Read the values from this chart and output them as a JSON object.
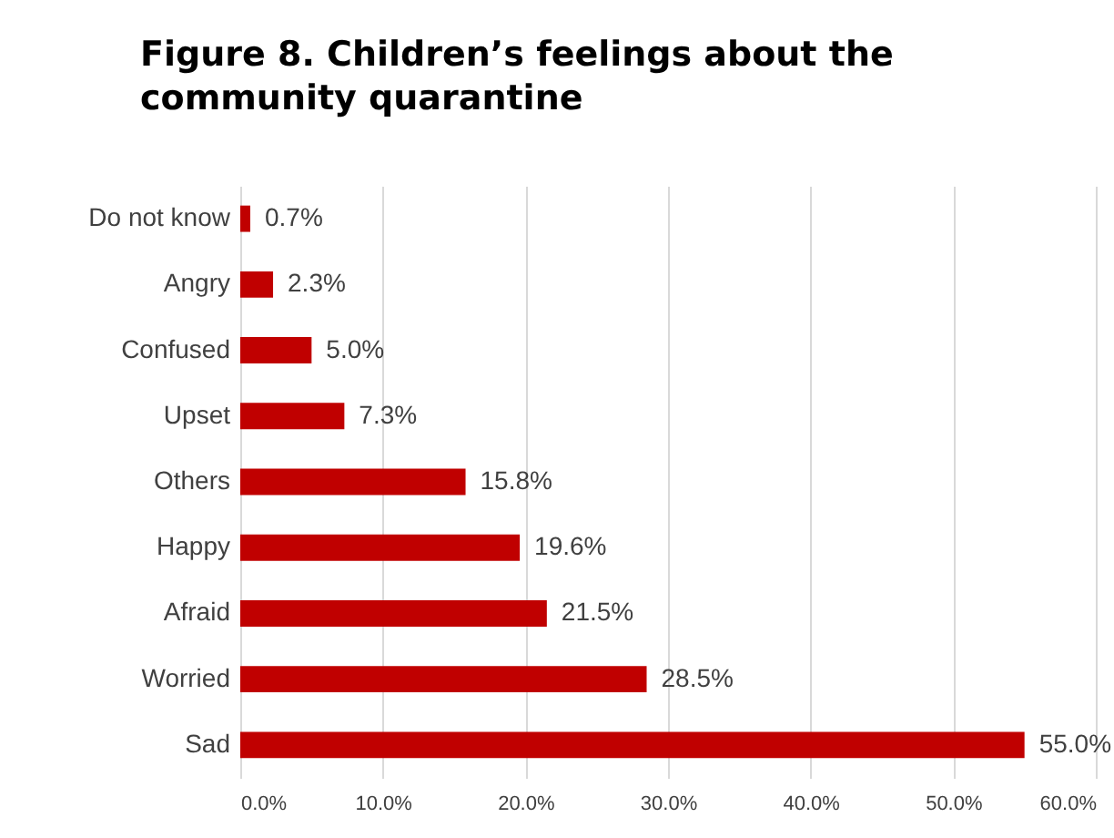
{
  "chart_data": {
    "type": "bar",
    "orientation": "horizontal",
    "title": "Figure 8. Children’s feelings about the community quarantine",
    "categories": [
      "Do not know",
      "Angry",
      "Confused",
      "Upset",
      "Others",
      "Happy",
      "Afraid",
      "Worried",
      "Sad"
    ],
    "values": [
      0.7,
      2.3,
      5.0,
      7.3,
      15.8,
      19.6,
      21.5,
      28.5,
      55.0
    ],
    "value_labels": [
      "0.7%",
      "2.3%",
      "5.0%",
      "7.3%",
      "15.8%",
      "19.6%",
      "21.5%",
      "28.5%",
      "55.0%"
    ],
    "color": "#c00000",
    "xlim": [
      0,
      60
    ],
    "xticks": [
      {
        "value": 0,
        "label": "0.0%"
      },
      {
        "value": 10,
        "label": "10.0%"
      },
      {
        "value": 20,
        "label": "20.0%"
      },
      {
        "value": 30,
        "label": "30.0%"
      },
      {
        "value": 40,
        "label": "40.0%"
      },
      {
        "value": 50,
        "label": "50.0%"
      },
      {
        "value": 60,
        "label": "60.0%"
      }
    ],
    "grid": "x"
  }
}
